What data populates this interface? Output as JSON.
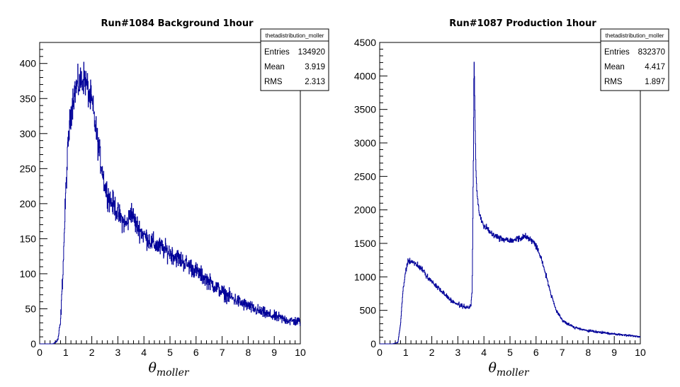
{
  "chart_data": [
    {
      "type": "histogram",
      "title": "Run#1084 Background 1hour",
      "xlabel": "θ",
      "xlabel_sub": "moller",
      "ylabel": "",
      "xlim": [
        0,
        10
      ],
      "ylim": [
        0,
        430
      ],
      "x_ticks": [
        0,
        1,
        2,
        3,
        4,
        5,
        6,
        7,
        8,
        9,
        10
      ],
      "y_ticks": [
        0,
        50,
        100,
        150,
        200,
        250,
        300,
        350,
        400
      ],
      "line_color": "#000099",
      "stats": {
        "name": "thetadistribution_moller",
        "rows": [
          {
            "label": "Entries",
            "value": "134920"
          },
          {
            "label": "Mean",
            "value": "3.919"
          },
          {
            "label": "RMS",
            "value": "2.313"
          }
        ]
      },
      "x": [
        0.0,
        0.5,
        0.6,
        0.7,
        0.8,
        0.9,
        1.0,
        1.1,
        1.2,
        1.3,
        1.4,
        1.5,
        1.6,
        1.7,
        1.8,
        1.9,
        2.0,
        2.1,
        2.2,
        2.3,
        2.4,
        2.5,
        2.6,
        2.7,
        2.8,
        2.9,
        3.0,
        3.1,
        3.2,
        3.3,
        3.4,
        3.5,
        3.6,
        3.7,
        3.8,
        3.9,
        4.0,
        4.2,
        4.4,
        4.6,
        4.8,
        5.0,
        5.2,
        5.4,
        5.6,
        5.8,
        6.0,
        6.2,
        6.4,
        6.6,
        6.8,
        7.0,
        7.2,
        7.4,
        7.6,
        7.8,
        8.0,
        8.2,
        8.4,
        8.6,
        8.8,
        9.0,
        9.2,
        9.4,
        9.6,
        9.8,
        10.0
      ],
      "values": [
        0,
        0,
        2,
        6,
        30,
        110,
        215,
        290,
        330,
        355,
        365,
        370,
        375,
        380,
        370,
        355,
        345,
        320,
        295,
        270,
        250,
        225,
        215,
        205,
        200,
        195,
        185,
        180,
        175,
        170,
        175,
        190,
        180,
        170,
        165,
        160,
        155,
        148,
        142,
        138,
        134,
        130,
        125,
        120,
        115,
        110,
        104,
        98,
        92,
        86,
        80,
        74,
        69,
        65,
        61,
        57,
        54,
        50,
        47,
        44,
        41,
        39,
        37,
        35,
        33,
        32,
        32
      ]
    },
    {
      "type": "histogram",
      "title": "Run#1087 Production 1hour",
      "xlabel": "θ",
      "xlabel_sub": "moller",
      "ylabel": "",
      "xlim": [
        0,
        10
      ],
      "ylim": [
        0,
        4500
      ],
      "x_ticks": [
        0,
        1,
        2,
        3,
        4,
        5,
        6,
        7,
        8,
        9,
        10
      ],
      "y_ticks": [
        0,
        500,
        1000,
        1500,
        2000,
        2500,
        3000,
        3500,
        4000,
        4500
      ],
      "line_color": "#000099",
      "stats": {
        "name": "thetadistribution_moller",
        "rows": [
          {
            "label": "Entries",
            "value": "832370"
          },
          {
            "label": "Mean",
            "value": "4.417"
          },
          {
            "label": "RMS",
            "value": "1.897"
          }
        ]
      },
      "x": [
        0.0,
        0.5,
        0.7,
        0.8,
        0.9,
        1.0,
        1.1,
        1.2,
        1.3,
        1.4,
        1.6,
        1.8,
        2.0,
        2.2,
        2.4,
        2.6,
        2.8,
        3.0,
        3.2,
        3.4,
        3.5,
        3.55,
        3.6,
        3.62,
        3.65,
        3.68,
        3.72,
        3.8,
        3.9,
        4.0,
        4.2,
        4.4,
        4.6,
        4.8,
        5.0,
        5.2,
        5.4,
        5.6,
        5.8,
        6.0,
        6.2,
        6.4,
        6.6,
        6.8,
        7.0,
        7.2,
        7.4,
        7.6,
        7.8,
        8.0,
        8.2,
        8.4,
        8.6,
        8.8,
        9.0,
        9.2,
        9.4,
        9.6,
        9.8,
        10.0
      ],
      "values": [
        0,
        0,
        20,
        300,
        800,
        1100,
        1230,
        1240,
        1220,
        1190,
        1120,
        1020,
        930,
        850,
        780,
        700,
        630,
        590,
        560,
        540,
        560,
        800,
        3000,
        4300,
        3600,
        2800,
        2300,
        2000,
        1850,
        1760,
        1690,
        1630,
        1580,
        1560,
        1550,
        1560,
        1580,
        1600,
        1560,
        1470,
        1280,
        1000,
        700,
        470,
        360,
        300,
        260,
        230,
        210,
        195,
        185,
        175,
        165,
        155,
        148,
        140,
        132,
        125,
        115,
        105
      ]
    }
  ]
}
